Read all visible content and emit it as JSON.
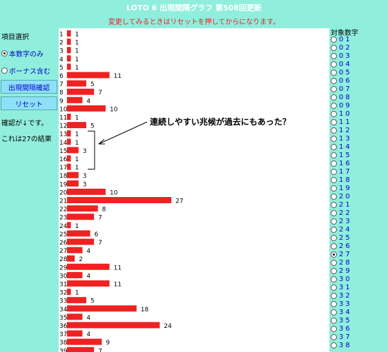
{
  "header": {
    "title": "LOTO 6 出現間隔グラフ 第508回更新",
    "notice": "変更してみるときはリセットを押してからになります。"
  },
  "left_panel": {
    "selection_label": "項目選択",
    "radio_main": "本数字のみ",
    "radio_bonus": "ボーナス含む",
    "confirm_button": "出現間隔確認",
    "reset_button": "リセット",
    "confirm_note": "確認が↓です。",
    "result_note": "これは27の結果"
  },
  "annotation": "連続しやすい兆候が過去にもあった？",
  "right_panel": {
    "title": "対象数字",
    "selected": "27",
    "numbers": [
      "01",
      "02",
      "03",
      "04",
      "05",
      "06",
      "07",
      "08",
      "09",
      "10",
      "11",
      "12",
      "13",
      "14",
      "15",
      "16",
      "17",
      "18",
      "19",
      "20",
      "21",
      "22",
      "23",
      "24",
      "25",
      "26",
      "27",
      "28",
      "29",
      "30",
      "31",
      "32",
      "33",
      "34",
      "35",
      "36",
      "37",
      "38"
    ]
  },
  "chart_data": {
    "type": "bar",
    "orientation": "horizontal",
    "bar_color": "#ee2222",
    "categories": [
      "1",
      "2",
      "3",
      "4",
      "5",
      "6",
      "7",
      "8",
      "9",
      "10",
      "11",
      "12",
      "13",
      "14",
      "15",
      "16",
      "17",
      "18",
      "19",
      "20",
      "21",
      "22",
      "23",
      "24",
      "25",
      "26",
      "27",
      "28",
      "29",
      "30",
      "31",
      "32",
      "33",
      "34",
      "35",
      "36",
      "37",
      "38",
      "39"
    ],
    "values": [
      1,
      1,
      1,
      1,
      1,
      11,
      5,
      7,
      4,
      10,
      1,
      5,
      1,
      1,
      3,
      1,
      1,
      3,
      3,
      10,
      27,
      8,
      7,
      1,
      6,
      7,
      4,
      2,
      11,
      4,
      11,
      1,
      5,
      18,
      4,
      24,
      4,
      9,
      7
    ]
  }
}
